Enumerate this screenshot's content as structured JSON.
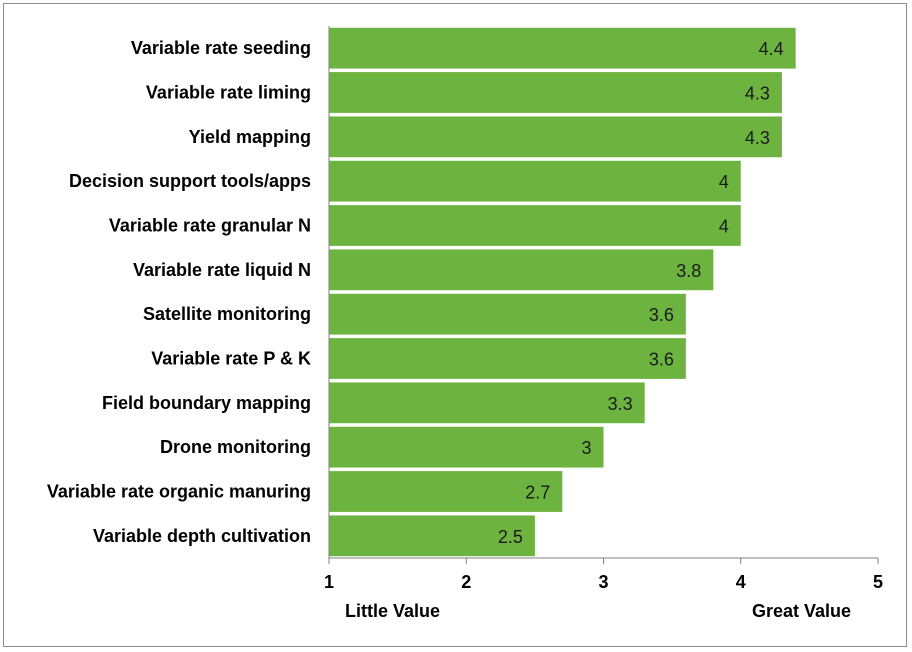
{
  "chart_data": {
    "type": "bar",
    "orientation": "horizontal",
    "categories": [
      "Variable rate seeding",
      "Variable rate liming",
      "Yield mapping",
      "Decision support tools/apps",
      "Variable rate granular N",
      "Variable rate liquid N",
      "Satellite monitoring",
      "Variable rate P & K",
      "Field boundary mapping",
      "Drone monitoring",
      "Variable rate organic manuring",
      "Variable depth cultivation"
    ],
    "values": [
      4.4,
      4.3,
      4.3,
      4,
      4,
      3.8,
      3.6,
      3.6,
      3.3,
      3,
      2.7,
      2.5
    ],
    "value_labels": [
      "4.4",
      "4.3",
      "4.3",
      "4",
      "4",
      "3.8",
      "3.6",
      "3.6",
      "3.3",
      "3",
      "2.7",
      "2.5"
    ],
    "xlim": [
      1,
      5
    ],
    "xticks": [
      "1",
      "2",
      "3",
      "4",
      "5"
    ],
    "x_end_labels": {
      "left": "Little Value",
      "right": "Great Value"
    },
    "title": "",
    "xlabel": "",
    "ylabel": "",
    "grid": false,
    "bar_color": "#6db33f"
  }
}
